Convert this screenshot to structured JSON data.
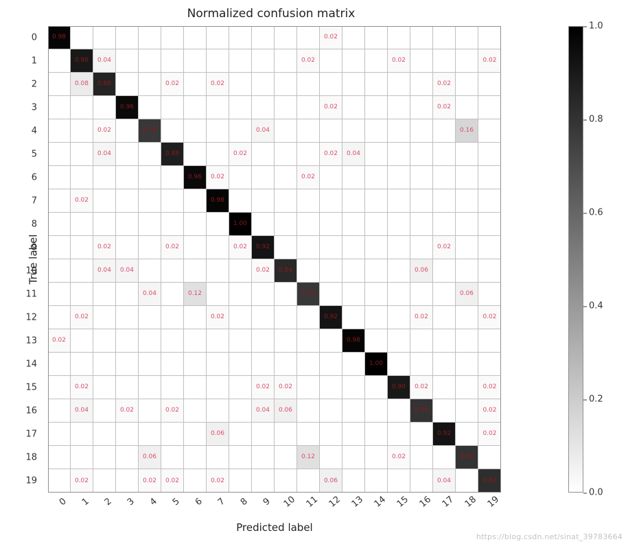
{
  "title": "Normalized confusion matrix",
  "xlabel": "Predicted label",
  "ylabel": "True label",
  "watermark": "https://blog.csdn.net/sinat_39783664",
  "confusion_matrix": {
    "type": "heatmap",
    "n": 20,
    "x_tick_labels": [
      "0",
      "1",
      "2",
      "3",
      "4",
      "5",
      "6",
      "7",
      "8",
      "9",
      "10",
      "11",
      "12",
      "13",
      "14",
      "15",
      "16",
      "17",
      "18",
      "19"
    ],
    "y_tick_labels": [
      "0",
      "1",
      "2",
      "3",
      "4",
      "5",
      "6",
      "7",
      "8",
      "9",
      "10",
      "11",
      "12",
      "13",
      "14",
      "15",
      "16",
      "17",
      "18",
      "19"
    ],
    "x_tick_rotation_deg": -40,
    "cell_font_size": 9,
    "tick_font_size": 13,
    "label_font_size": 15,
    "title_font_size": 17,
    "diag_text_color": "#8a1a1a",
    "offdiag_text_color": "#d94f6a",
    "grid_color": "#bfbfbf",
    "border_color": "#8f8f8f",
    "background_color": "#ffffff",
    "colormap": "gray_r",
    "vmin": 0.0,
    "vmax": 1.0,
    "value_format": "0.00",
    "cells": [
      {
        "r": 0,
        "c": 0,
        "v": 0.98
      },
      {
        "r": 0,
        "c": 12,
        "v": 0.02
      },
      {
        "r": 1,
        "c": 1,
        "v": 0.9
      },
      {
        "r": 1,
        "c": 2,
        "v": 0.04
      },
      {
        "r": 1,
        "c": 11,
        "v": 0.02
      },
      {
        "r": 1,
        "c": 15,
        "v": 0.02
      },
      {
        "r": 1,
        "c": 19,
        "v": 0.02
      },
      {
        "r": 2,
        "c": 1,
        "v": 0.08
      },
      {
        "r": 2,
        "c": 2,
        "v": 0.86
      },
      {
        "r": 2,
        "c": 5,
        "v": 0.02
      },
      {
        "r": 2,
        "c": 7,
        "v": 0.02
      },
      {
        "r": 2,
        "c": 17,
        "v": 0.02
      },
      {
        "r": 3,
        "c": 3,
        "v": 0.96
      },
      {
        "r": 3,
        "c": 12,
        "v": 0.02
      },
      {
        "r": 3,
        "c": 17,
        "v": 0.02
      },
      {
        "r": 4,
        "c": 2,
        "v": 0.02
      },
      {
        "r": 4,
        "c": 4,
        "v": 0.78
      },
      {
        "r": 4,
        "c": 9,
        "v": 0.04
      },
      {
        "r": 4,
        "c": 18,
        "v": 0.16
      },
      {
        "r": 5,
        "c": 2,
        "v": 0.04
      },
      {
        "r": 5,
        "c": 5,
        "v": 0.88
      },
      {
        "r": 5,
        "c": 8,
        "v": 0.02
      },
      {
        "r": 5,
        "c": 12,
        "v": 0.02
      },
      {
        "r": 5,
        "c": 13,
        "v": 0.04
      },
      {
        "r": 6,
        "c": 6,
        "v": 0.96
      },
      {
        "r": 6,
        "c": 7,
        "v": 0.02
      },
      {
        "r": 6,
        "c": 11,
        "v": 0.02
      },
      {
        "r": 7,
        "c": 1,
        "v": 0.02
      },
      {
        "r": 7,
        "c": 7,
        "v": 0.98
      },
      {
        "r": 8,
        "c": 8,
        "v": 1.0
      },
      {
        "r": 9,
        "c": 2,
        "v": 0.02
      },
      {
        "r": 9,
        "c": 5,
        "v": 0.02
      },
      {
        "r": 9,
        "c": 8,
        "v": 0.02
      },
      {
        "r": 9,
        "c": 9,
        "v": 0.92
      },
      {
        "r": 9,
        "c": 17,
        "v": 0.02
      },
      {
        "r": 10,
        "c": 2,
        "v": 0.04
      },
      {
        "r": 10,
        "c": 3,
        "v": 0.04
      },
      {
        "r": 10,
        "c": 9,
        "v": 0.02
      },
      {
        "r": 10,
        "c": 10,
        "v": 0.84
      },
      {
        "r": 10,
        "c": 16,
        "v": 0.06
      },
      {
        "r": 11,
        "c": 4,
        "v": 0.04
      },
      {
        "r": 11,
        "c": 6,
        "v": 0.12
      },
      {
        "r": 11,
        "c": 11,
        "v": 0.78
      },
      {
        "r": 11,
        "c": 18,
        "v": 0.06
      },
      {
        "r": 12,
        "c": 1,
        "v": 0.02
      },
      {
        "r": 12,
        "c": 7,
        "v": 0.02
      },
      {
        "r": 12,
        "c": 12,
        "v": 0.92
      },
      {
        "r": 12,
        "c": 16,
        "v": 0.02
      },
      {
        "r": 12,
        "c": 19,
        "v": 0.02
      },
      {
        "r": 13,
        "c": 0,
        "v": 0.02
      },
      {
        "r": 13,
        "c": 13,
        "v": 0.98
      },
      {
        "r": 14,
        "c": 14,
        "v": 1.0
      },
      {
        "r": 15,
        "c": 1,
        "v": 0.02
      },
      {
        "r": 15,
        "c": 9,
        "v": 0.02
      },
      {
        "r": 15,
        "c": 10,
        "v": 0.02
      },
      {
        "r": 15,
        "c": 15,
        "v": 0.9
      },
      {
        "r": 15,
        "c": 16,
        "v": 0.02
      },
      {
        "r": 15,
        "c": 19,
        "v": 0.02
      },
      {
        "r": 16,
        "c": 1,
        "v": 0.04
      },
      {
        "r": 16,
        "c": 3,
        "v": 0.02
      },
      {
        "r": 16,
        "c": 5,
        "v": 0.02
      },
      {
        "r": 16,
        "c": 9,
        "v": 0.04
      },
      {
        "r": 16,
        "c": 10,
        "v": 0.06
      },
      {
        "r": 16,
        "c": 16,
        "v": 0.8
      },
      {
        "r": 16,
        "c": 19,
        "v": 0.02
      },
      {
        "r": 17,
        "c": 7,
        "v": 0.06
      },
      {
        "r": 17,
        "c": 17,
        "v": 0.92
      },
      {
        "r": 17,
        "c": 19,
        "v": 0.02
      },
      {
        "r": 18,
        "c": 4,
        "v": 0.06
      },
      {
        "r": 18,
        "c": 11,
        "v": 0.12
      },
      {
        "r": 18,
        "c": 15,
        "v": 0.02
      },
      {
        "r": 18,
        "c": 18,
        "v": 0.8
      },
      {
        "r": 19,
        "c": 1,
        "v": 0.02
      },
      {
        "r": 19,
        "c": 4,
        "v": 0.02
      },
      {
        "r": 19,
        "c": 5,
        "v": 0.02
      },
      {
        "r": 19,
        "c": 7,
        "v": 0.02
      },
      {
        "r": 19,
        "c": 12,
        "v": 0.06
      },
      {
        "r": 19,
        "c": 17,
        "v": 0.04
      },
      {
        "r": 19,
        "c": 19,
        "v": 0.82
      }
    ]
  },
  "colorbar": {
    "ticks": [
      0.0,
      0.2,
      0.4,
      0.6,
      0.8,
      1.0
    ],
    "tick_labels": [
      "0.0",
      "0.2",
      "0.4",
      "0.6",
      "0.8",
      "1.0"
    ],
    "gradient_top_color": "#000000",
    "gradient_bottom_color": "#ffffff"
  }
}
